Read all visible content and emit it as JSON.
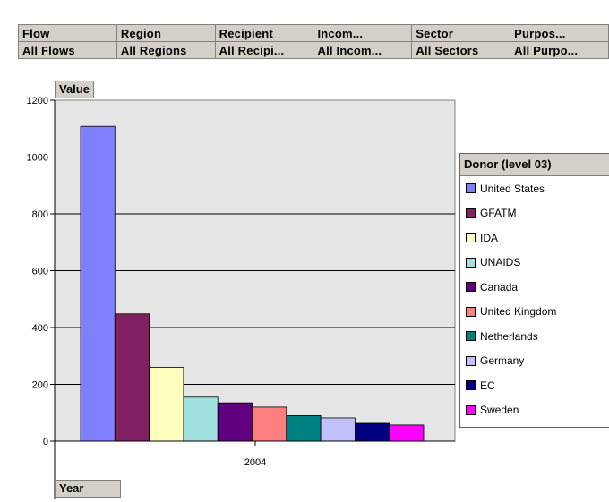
{
  "filters": {
    "headers": [
      "Flow",
      "Region",
      "Recipient",
      "Incom...",
      "Sector",
      "Purpos..."
    ],
    "values": [
      "All Flows",
      "All Regions",
      "All Recipi...",
      "All Incom...",
      "All Sectors",
      "All Purpo..."
    ]
  },
  "value_button": "Value",
  "year_button": "Year",
  "legend_title": "Donor (level 03)",
  "chart_data": {
    "type": "bar",
    "categories": [
      "2004"
    ],
    "ylim": [
      0,
      1200
    ],
    "yticks": [
      0,
      200,
      400,
      600,
      800,
      1000,
      1200
    ],
    "grid": true,
    "legend_placement": "right",
    "xlabel": "Year",
    "ylabel": "Value",
    "series": [
      {
        "name": "United States",
        "color": "#8080ff",
        "values": [
          1108
        ]
      },
      {
        "name": "GFATM",
        "color": "#802060",
        "values": [
          448
        ]
      },
      {
        "name": "IDA",
        "color": "#ffffc0",
        "values": [
          260
        ]
      },
      {
        "name": "UNAIDS",
        "color": "#a0e0e0",
        "values": [
          155
        ]
      },
      {
        "name": "Canada",
        "color": "#600080",
        "values": [
          135
        ]
      },
      {
        "name": "United Kingdom",
        "color": "#ff8080",
        "values": [
          120
        ]
      },
      {
        "name": "Netherlands",
        "color": "#008080",
        "values": [
          90
        ]
      },
      {
        "name": "Germany",
        "color": "#c0c0ff",
        "values": [
          82
        ]
      },
      {
        "name": "EC",
        "color": "#000080",
        "values": [
          63
        ]
      },
      {
        "name": "Sweden",
        "color": "#ff00ff",
        "values": [
          57
        ]
      }
    ]
  }
}
